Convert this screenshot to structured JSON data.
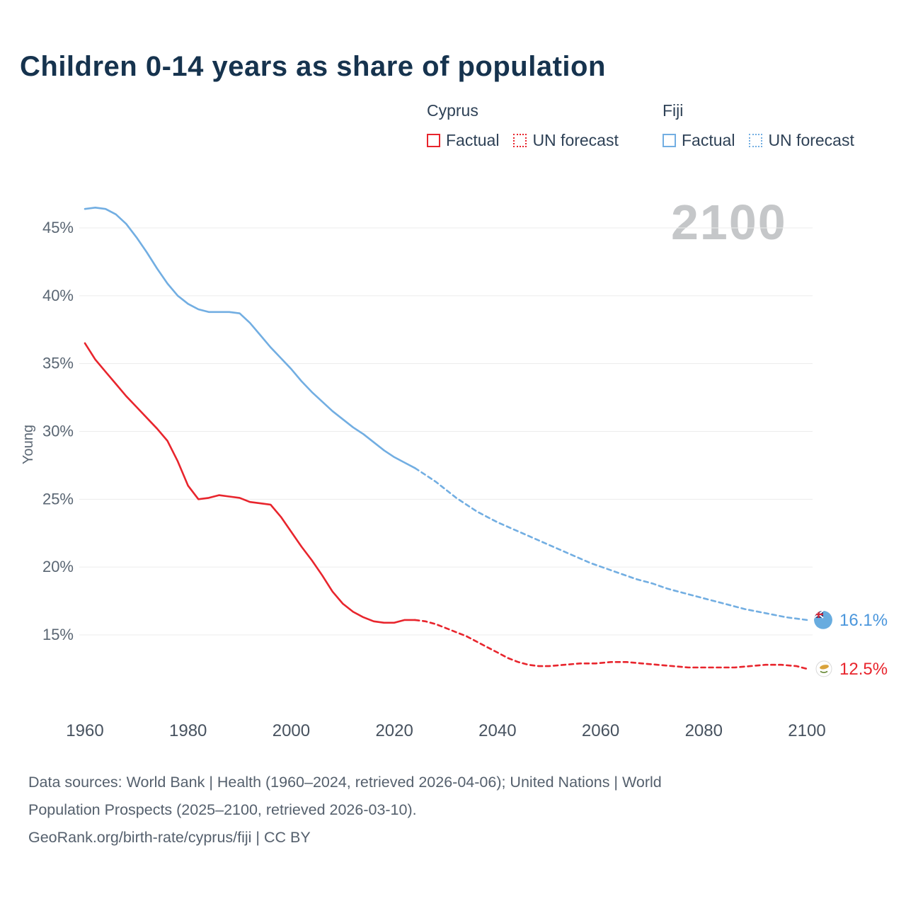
{
  "title": "Children 0-14 years as share of population",
  "watermark": "2100",
  "legend": {
    "groups": [
      {
        "name": "Cyprus",
        "color": "#e8252d",
        "items": [
          {
            "label": "Factual",
            "line_style": "solid"
          },
          {
            "label": "UN forecast",
            "line_style": "dotted"
          }
        ]
      },
      {
        "name": "Fiji",
        "color": "#72aee2",
        "items": [
          {
            "label": "Factual",
            "line_style": "solid"
          },
          {
            "label": "UN forecast",
            "line_style": "dotted"
          }
        ]
      }
    ]
  },
  "chart_data": {
    "type": "line",
    "title": "Children 0-14 years as share of population",
    "xlabel": "",
    "ylabel": "Young",
    "x_ticks": [
      1960,
      1980,
      2000,
      2020,
      2040,
      2060,
      2080,
      2100
    ],
    "y_ticks": [
      15,
      20,
      25,
      30,
      35,
      40,
      45
    ],
    "y_tick_suffix": "%",
    "xlim": [
      1960,
      2100
    ],
    "ylim": [
      11.5,
      47.5
    ],
    "grid": "horizontal",
    "legend_position": "top-right",
    "series": [
      {
        "id": "fiji-factual",
        "name": "Fiji Factual",
        "color": "#72aee2",
        "dash": "solid",
        "points": [
          [
            1960,
            46.4
          ],
          [
            1962,
            46.5
          ],
          [
            1964,
            46.4
          ],
          [
            1966,
            46.0
          ],
          [
            1968,
            45.3
          ],
          [
            1970,
            44.3
          ],
          [
            1972,
            43.2
          ],
          [
            1974,
            42.0
          ],
          [
            1976,
            40.9
          ],
          [
            1978,
            40.0
          ],
          [
            1980,
            39.4
          ],
          [
            1982,
            39.0
          ],
          [
            1984,
            38.8
          ],
          [
            1986,
            38.8
          ],
          [
            1988,
            38.8
          ],
          [
            1990,
            38.7
          ],
          [
            1992,
            38.0
          ],
          [
            1994,
            37.1
          ],
          [
            1996,
            36.2
          ],
          [
            1998,
            35.4
          ],
          [
            2000,
            34.6
          ],
          [
            2002,
            33.7
          ],
          [
            2004,
            32.9
          ],
          [
            2006,
            32.2
          ],
          [
            2008,
            31.5
          ],
          [
            2010,
            30.9
          ],
          [
            2012,
            30.3
          ],
          [
            2014,
            29.8
          ],
          [
            2016,
            29.2
          ],
          [
            2018,
            28.6
          ],
          [
            2020,
            28.1
          ],
          [
            2022,
            27.7
          ],
          [
            2024,
            27.3
          ]
        ]
      },
      {
        "id": "fiji-forecast",
        "name": "Fiji UN forecast",
        "color": "#72aee2",
        "dash": "dashed",
        "points": [
          [
            2024,
            27.3
          ],
          [
            2026,
            26.8
          ],
          [
            2028,
            26.3
          ],
          [
            2030,
            25.7
          ],
          [
            2032,
            25.1
          ],
          [
            2034,
            24.6
          ],
          [
            2036,
            24.1
          ],
          [
            2038,
            23.7
          ],
          [
            2040,
            23.3
          ],
          [
            2043,
            22.8
          ],
          [
            2046,
            22.3
          ],
          [
            2049,
            21.8
          ],
          [
            2052,
            21.3
          ],
          [
            2055,
            20.8
          ],
          [
            2058,
            20.3
          ],
          [
            2061,
            19.9
          ],
          [
            2064,
            19.5
          ],
          [
            2067,
            19.1
          ],
          [
            2070,
            18.8
          ],
          [
            2073,
            18.4
          ],
          [
            2076,
            18.1
          ],
          [
            2080,
            17.7
          ],
          [
            2084,
            17.3
          ],
          [
            2088,
            16.9
          ],
          [
            2092,
            16.6
          ],
          [
            2096,
            16.3
          ],
          [
            2100,
            16.1
          ]
        ]
      },
      {
        "id": "cyprus-factual",
        "name": "Cyprus Factual",
        "color": "#e8252d",
        "dash": "solid",
        "points": [
          [
            1960,
            36.5
          ],
          [
            1962,
            35.3
          ],
          [
            1964,
            34.4
          ],
          [
            1966,
            33.5
          ],
          [
            1968,
            32.6
          ],
          [
            1970,
            31.8
          ],
          [
            1972,
            31.0
          ],
          [
            1974,
            30.2
          ],
          [
            1976,
            29.3
          ],
          [
            1978,
            27.8
          ],
          [
            1980,
            26.0
          ],
          [
            1982,
            25.0
          ],
          [
            1984,
            25.1
          ],
          [
            1986,
            25.3
          ],
          [
            1988,
            25.2
          ],
          [
            1990,
            25.1
          ],
          [
            1992,
            24.8
          ],
          [
            1994,
            24.7
          ],
          [
            1996,
            24.6
          ],
          [
            1998,
            23.7
          ],
          [
            2000,
            22.6
          ],
          [
            2002,
            21.5
          ],
          [
            2004,
            20.5
          ],
          [
            2006,
            19.4
          ],
          [
            2008,
            18.2
          ],
          [
            2010,
            17.3
          ],
          [
            2012,
            16.7
          ],
          [
            2014,
            16.3
          ],
          [
            2016,
            16.0
          ],
          [
            2018,
            15.9
          ],
          [
            2020,
            15.9
          ],
          [
            2022,
            16.1
          ],
          [
            2024,
            16.1
          ]
        ]
      },
      {
        "id": "cyprus-forecast",
        "name": "Cyprus UN forecast",
        "color": "#e8252d",
        "dash": "dashed",
        "points": [
          [
            2024,
            16.1
          ],
          [
            2026,
            16.0
          ],
          [
            2028,
            15.8
          ],
          [
            2030,
            15.5
          ],
          [
            2032,
            15.2
          ],
          [
            2034,
            14.9
          ],
          [
            2036,
            14.5
          ],
          [
            2038,
            14.1
          ],
          [
            2040,
            13.7
          ],
          [
            2042,
            13.3
          ],
          [
            2044,
            13.0
          ],
          [
            2046,
            12.8
          ],
          [
            2048,
            12.7
          ],
          [
            2050,
            12.7
          ],
          [
            2053,
            12.8
          ],
          [
            2056,
            12.9
          ],
          [
            2059,
            12.9
          ],
          [
            2062,
            13.0
          ],
          [
            2065,
            13.0
          ],
          [
            2068,
            12.9
          ],
          [
            2071,
            12.8
          ],
          [
            2074,
            12.7
          ],
          [
            2077,
            12.6
          ],
          [
            2080,
            12.6
          ],
          [
            2083,
            12.6
          ],
          [
            2086,
            12.6
          ],
          [
            2089,
            12.7
          ],
          [
            2092,
            12.8
          ],
          [
            2095,
            12.8
          ],
          [
            2098,
            12.7
          ],
          [
            2100,
            12.5
          ]
        ]
      }
    ],
    "end_labels": [
      {
        "country": "Fiji",
        "text": "16.1%",
        "value": 16.1,
        "year": 2100,
        "color": "#4a96dc",
        "icon": "fiji-flag-icon"
      },
      {
        "country": "Cyprus",
        "text": "12.5%",
        "value": 12.5,
        "year": 2100,
        "color": "#e8252d",
        "icon": "cyprus-flag-icon"
      }
    ]
  },
  "footer": {
    "lines": [
      "Data sources: World Bank | Health (1960–2024, retrieved 2026-04-06); United Nations | World",
      "Population Prospects (2025–2100, retrieved 2026-03-10).",
      "GeoRank.org/birth-rate/cyprus/fiji | CC BY"
    ]
  }
}
